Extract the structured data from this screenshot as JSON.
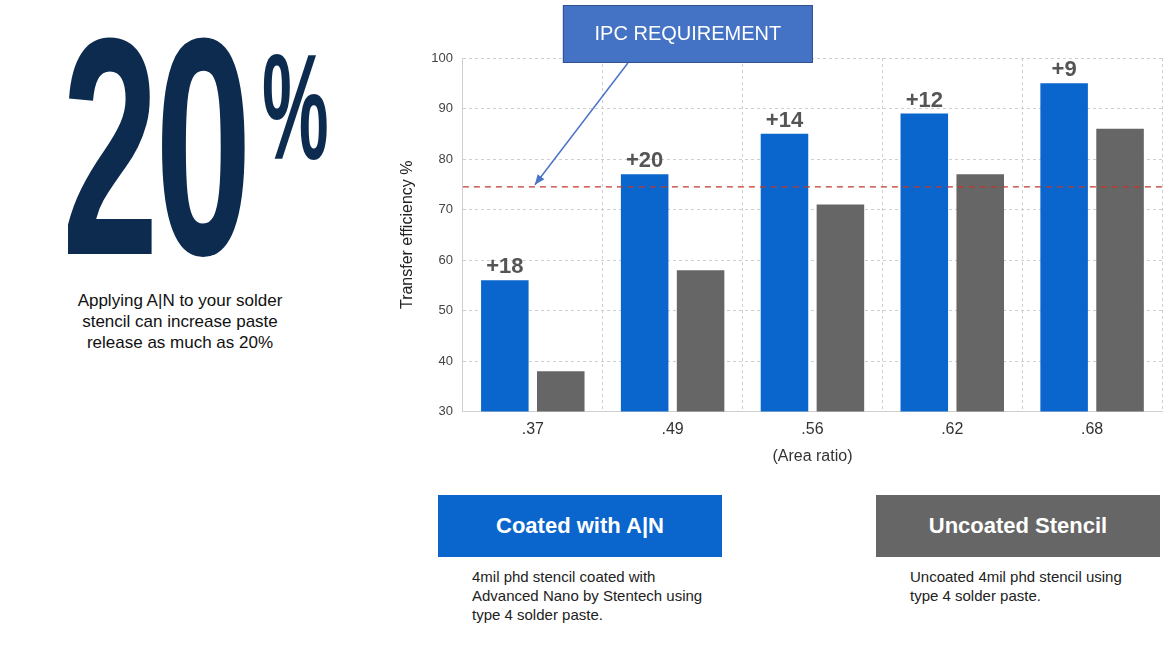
{
  "chart_data": {
    "type": "bar",
    "headline": "20%",
    "headline_text": "Applying A|N to your solder stencil can increase paste release as much as 20%",
    "x_label": "(Area ratio)",
    "y_label": "Transfer efficiency %",
    "categories": [
      ".37",
      ".49",
      ".56",
      ".62",
      ".68"
    ],
    "series": [
      {
        "name": "Coated with A|N",
        "color": "#0a66cc",
        "values": [
          56,
          77,
          85,
          89,
          95
        ],
        "description": "4mil phd stencil coated with Advanced Nano by Stentech using type 4 solder paste."
      },
      {
        "name": "Uncoated Stencil",
        "color": "#666666",
        "values": [
          38,
          58,
          71,
          77,
          86
        ],
        "description": "Uncoated 4mil phd stencil using type 4 solder paste."
      }
    ],
    "annotations": [
      {
        "category": ".37",
        "series": "Coated with A|N",
        "text": "+18"
      },
      {
        "category": ".49",
        "series": "Coated with A|N",
        "text": "+20"
      },
      {
        "category": ".56",
        "series": "Coated with A|N",
        "text": "+14"
      },
      {
        "category": ".62",
        "series": "Coated with A|N",
        "text": "+12"
      },
      {
        "category": ".68",
        "series": "Coated with A|N",
        "text": "+9"
      }
    ],
    "reference_lines": [
      {
        "value": 74.5,
        "label": "IPC REQUIREMENT",
        "color": "#c0392b",
        "line_style": "dashed"
      }
    ],
    "ylim": [
      30,
      100
    ],
    "yticks": [
      30,
      40,
      50,
      60,
      70,
      80,
      90,
      100
    ],
    "grid": true,
    "legend": "bottom"
  }
}
